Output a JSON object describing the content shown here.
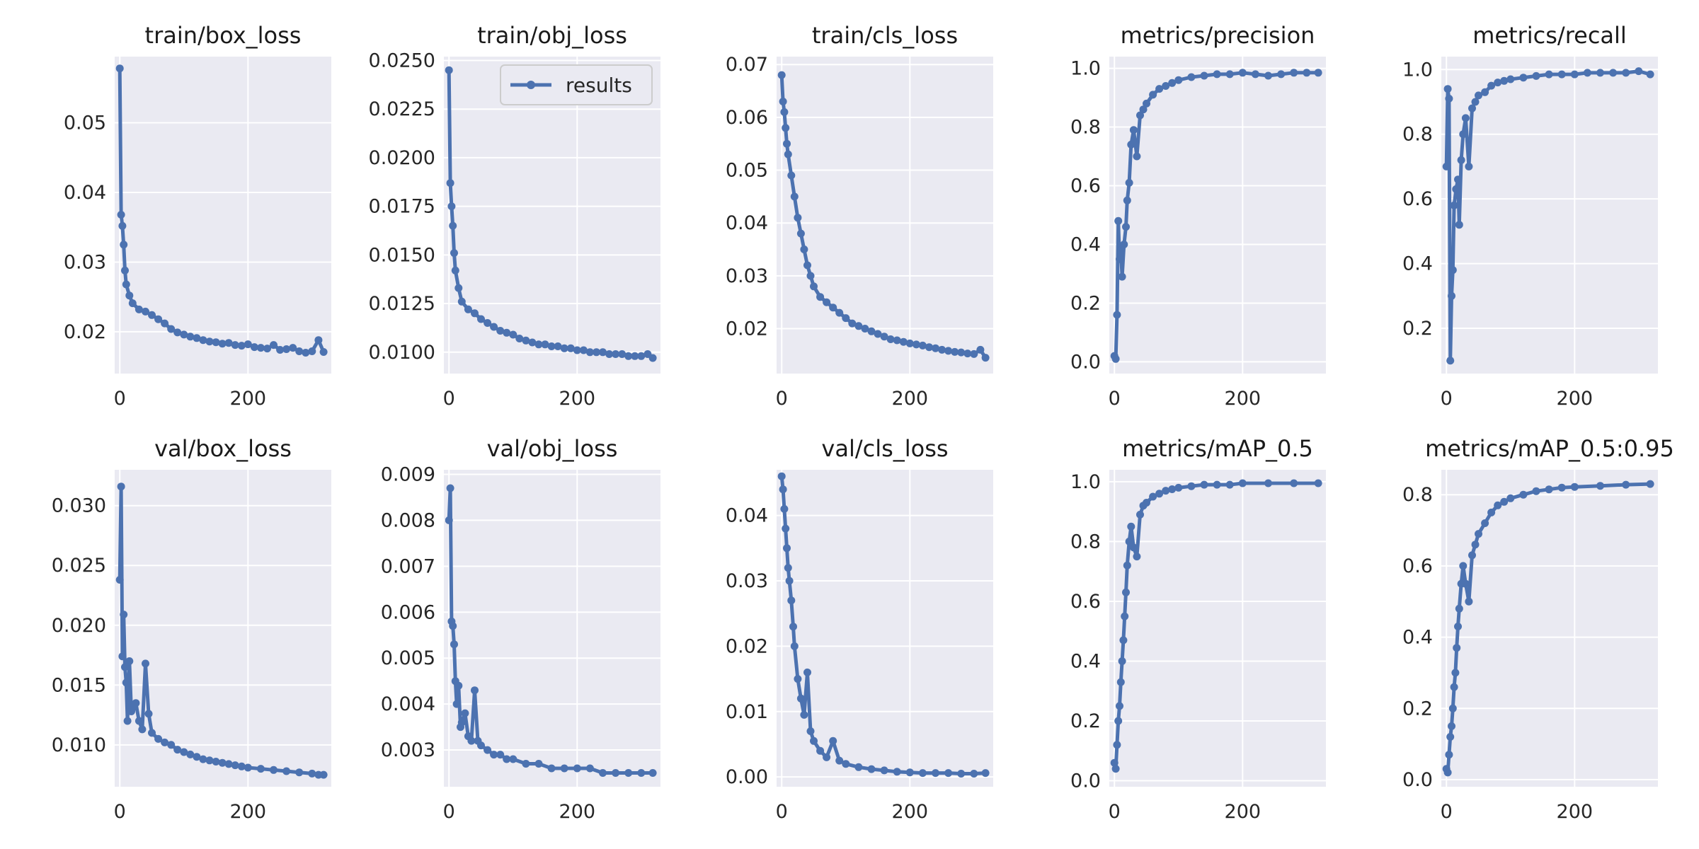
{
  "figure_style": {
    "series_color": "#4c72b0"
  },
  "legend": {
    "label": "results",
    "panel": 1,
    "placement": "top-right"
  },
  "chart_data": [
    {
      "type": "line",
      "title": "train/box_loss",
      "xlim": [
        -8,
        330
      ],
      "ylim": [
        0.014,
        0.0595
      ],
      "xticks": [
        0,
        200
      ],
      "yticks": [
        0.02,
        0.03,
        0.04,
        0.05
      ],
      "ytick_labels": [
        "0.02",
        "0.03",
        "0.04",
        "0.05"
      ],
      "series": [
        {
          "name": "results",
          "x": [
            0,
            2,
            4,
            6,
            8,
            10,
            15,
            20,
            30,
            40,
            50,
            60,
            70,
            80,
            90,
            100,
            110,
            120,
            130,
            140,
            150,
            160,
            170,
            180,
            190,
            200,
            210,
            220,
            230,
            240,
            250,
            260,
            270,
            280,
            290,
            300,
            310,
            318
          ],
          "y": [
            0.0578,
            0.0368,
            0.0352,
            0.0325,
            0.0288,
            0.0268,
            0.0252,
            0.0241,
            0.0232,
            0.0229,
            0.0224,
            0.0218,
            0.0212,
            0.0204,
            0.0199,
            0.0196,
            0.0193,
            0.0191,
            0.0188,
            0.0186,
            0.0185,
            0.0183,
            0.0184,
            0.0181,
            0.018,
            0.0182,
            0.0178,
            0.0177,
            0.0176,
            0.0181,
            0.0174,
            0.0175,
            0.0177,
            0.0172,
            0.017,
            0.0172,
            0.0188,
            0.0171
          ]
        }
      ]
    },
    {
      "type": "line",
      "title": "train/obj_loss",
      "xlim": [
        -8,
        330
      ],
      "ylim": [
        0.0089,
        0.0252
      ],
      "xticks": [
        0,
        200
      ],
      "yticks": [
        0.01,
        0.0125,
        0.015,
        0.0175,
        0.02,
        0.0225,
        0.025
      ],
      "ytick_labels": [
        "0.0100",
        "0.0125",
        "0.0150",
        "0.0175",
        "0.0200",
        "0.0225",
        "0.0250"
      ],
      "series": [
        {
          "name": "results",
          "x": [
            0,
            2,
            4,
            6,
            8,
            10,
            15,
            20,
            30,
            40,
            50,
            60,
            70,
            80,
            90,
            100,
            110,
            120,
            130,
            140,
            150,
            160,
            170,
            180,
            190,
            200,
            210,
            220,
            230,
            240,
            250,
            260,
            270,
            280,
            290,
            300,
            310,
            318
          ],
          "y": [
            0.0245,
            0.0187,
            0.0175,
            0.0165,
            0.0151,
            0.0142,
            0.0133,
            0.0126,
            0.0122,
            0.012,
            0.0117,
            0.0115,
            0.0113,
            0.0111,
            0.011,
            0.0109,
            0.0107,
            0.0106,
            0.0105,
            0.0104,
            0.0104,
            0.0103,
            0.0103,
            0.0102,
            0.0102,
            0.0101,
            0.0101,
            0.01,
            0.01,
            0.01,
            0.0099,
            0.0099,
            0.0099,
            0.0098,
            0.0098,
            0.0098,
            0.0099,
            0.0097
          ]
        }
      ]
    },
    {
      "type": "line",
      "title": "train/cls_loss",
      "xlim": [
        -8,
        330
      ],
      "ylim": [
        0.0115,
        0.0715
      ],
      "xticks": [
        0,
        200
      ],
      "yticks": [
        0.02,
        0.03,
        0.04,
        0.05,
        0.06,
        0.07
      ],
      "ytick_labels": [
        "0.02",
        "0.03",
        "0.04",
        "0.05",
        "0.06",
        "0.07"
      ],
      "series": [
        {
          "name": "results",
          "x": [
            0,
            2,
            4,
            6,
            8,
            10,
            15,
            20,
            25,
            30,
            35,
            40,
            45,
            50,
            60,
            70,
            80,
            90,
            100,
            110,
            120,
            130,
            140,
            150,
            160,
            170,
            180,
            190,
            200,
            210,
            220,
            230,
            240,
            250,
            260,
            270,
            280,
            290,
            300,
            310,
            318
          ],
          "y": [
            0.068,
            0.063,
            0.061,
            0.058,
            0.055,
            0.053,
            0.049,
            0.045,
            0.041,
            0.038,
            0.035,
            0.032,
            0.03,
            0.028,
            0.026,
            0.025,
            0.024,
            0.023,
            0.022,
            0.021,
            0.0205,
            0.02,
            0.0195,
            0.019,
            0.0185,
            0.018,
            0.0178,
            0.0175,
            0.0172,
            0.017,
            0.0168,
            0.0165,
            0.0163,
            0.016,
            0.0158,
            0.0156,
            0.0155,
            0.0153,
            0.0152,
            0.016,
            0.0145
          ]
        }
      ]
    },
    {
      "type": "line",
      "title": "metrics/precision",
      "xlim": [
        -8,
        330
      ],
      "ylim": [
        -0.04,
        1.04
      ],
      "xticks": [
        0,
        200
      ],
      "yticks": [
        0,
        0.2,
        0.4,
        0.6,
        0.8,
        1.0
      ],
      "ytick_labels": [
        "0.0",
        "0.2",
        "0.4",
        "0.6",
        "0.8",
        "1.0"
      ],
      "series": [
        {
          "name": "results",
          "x": [
            0,
            2,
            4,
            6,
            8,
            10,
            12,
            15,
            18,
            20,
            23,
            26,
            30,
            35,
            40,
            45,
            50,
            60,
            70,
            80,
            90,
            100,
            120,
            140,
            160,
            180,
            200,
            220,
            240,
            260,
            280,
            300,
            318
          ],
          "y": [
            0.02,
            0.01,
            0.16,
            0.48,
            0.35,
            0.38,
            0.29,
            0.4,
            0.46,
            0.55,
            0.61,
            0.74,
            0.79,
            0.7,
            0.84,
            0.86,
            0.88,
            0.91,
            0.93,
            0.94,
            0.95,
            0.96,
            0.97,
            0.975,
            0.98,
            0.98,
            0.985,
            0.98,
            0.975,
            0.98,
            0.985,
            0.985,
            0.985
          ]
        }
      ]
    },
    {
      "type": "line",
      "title": "metrics/recall",
      "xlim": [
        -8,
        330
      ],
      "ylim": [
        0.06,
        1.04
      ],
      "xticks": [
        0,
        200
      ],
      "yticks": [
        0.2,
        0.4,
        0.6,
        0.8,
        1.0
      ],
      "ytick_labels": [
        "0.2",
        "0.4",
        "0.6",
        "0.8",
        "1.0"
      ],
      "series": [
        {
          "name": "results",
          "x": [
            0,
            2,
            4,
            6,
            8,
            10,
            12,
            15,
            18,
            20,
            23,
            26,
            30,
            35,
            40,
            45,
            50,
            60,
            70,
            80,
            90,
            100,
            120,
            140,
            160,
            180,
            200,
            220,
            240,
            260,
            280,
            300,
            318
          ],
          "y": [
            0.7,
            0.94,
            0.91,
            0.1,
            0.3,
            0.38,
            0.58,
            0.63,
            0.66,
            0.52,
            0.72,
            0.8,
            0.85,
            0.7,
            0.88,
            0.9,
            0.92,
            0.93,
            0.95,
            0.96,
            0.965,
            0.97,
            0.975,
            0.98,
            0.985,
            0.985,
            0.985,
            0.99,
            0.99,
            0.99,
            0.99,
            0.995,
            0.985
          ]
        }
      ]
    },
    {
      "type": "line",
      "title": "val/box_loss",
      "xlim": [
        -8,
        330
      ],
      "ylim": [
        0.0065,
        0.033
      ],
      "xticks": [
        0,
        200
      ],
      "yticks": [
        0.01,
        0.015,
        0.02,
        0.025,
        0.03
      ],
      "ytick_labels": [
        "0.010",
        "0.015",
        "0.020",
        "0.025",
        "0.030"
      ],
      "series": [
        {
          "name": "results",
          "x": [
            0,
            2,
            4,
            6,
            8,
            10,
            12,
            15,
            18,
            20,
            25,
            30,
            35,
            40,
            45,
            50,
            60,
            70,
            80,
            90,
            100,
            110,
            120,
            130,
            140,
            150,
            160,
            170,
            180,
            190,
            200,
            220,
            240,
            260,
            280,
            300,
            310,
            318
          ],
          "y": [
            0.0238,
            0.0316,
            0.0174,
            0.0209,
            0.0165,
            0.0152,
            0.012,
            0.017,
            0.0128,
            0.0131,
            0.0135,
            0.012,
            0.0113,
            0.0168,
            0.0126,
            0.011,
            0.0105,
            0.0102,
            0.01,
            0.0096,
            0.0094,
            0.0092,
            0.009,
            0.0088,
            0.0087,
            0.0086,
            0.0085,
            0.0084,
            0.0083,
            0.0082,
            0.0081,
            0.008,
            0.0079,
            0.0078,
            0.0077,
            0.0076,
            0.0075,
            0.0075
          ]
        }
      ]
    },
    {
      "type": "line",
      "title": "val/obj_loss",
      "xlim": [
        -8,
        330
      ],
      "ylim": [
        0.0022,
        0.0091
      ],
      "xticks": [
        0,
        200
      ],
      "yticks": [
        0.003,
        0.004,
        0.005,
        0.006,
        0.007,
        0.008,
        0.009
      ],
      "ytick_labels": [
        "0.003",
        "0.004",
        "0.005",
        "0.006",
        "0.007",
        "0.008",
        "0.009"
      ],
      "series": [
        {
          "name": "results",
          "x": [
            0,
            2,
            4,
            6,
            8,
            10,
            12,
            15,
            18,
            20,
            25,
            30,
            35,
            40,
            45,
            50,
            60,
            70,
            80,
            90,
            100,
            120,
            140,
            160,
            180,
            200,
            220,
            240,
            260,
            280,
            300,
            318
          ],
          "y": [
            0.008,
            0.0087,
            0.0058,
            0.0057,
            0.0053,
            0.0045,
            0.004,
            0.0044,
            0.0035,
            0.0036,
            0.0038,
            0.0033,
            0.0032,
            0.0043,
            0.0032,
            0.0031,
            0.003,
            0.0029,
            0.0029,
            0.0028,
            0.0028,
            0.0027,
            0.0027,
            0.0026,
            0.0026,
            0.0026,
            0.0026,
            0.0025,
            0.0025,
            0.0025,
            0.0025,
            0.0025
          ]
        }
      ]
    },
    {
      "type": "line",
      "title": "val/cls_loss",
      "xlim": [
        -8,
        330
      ],
      "ylim": [
        -0.0015,
        0.047
      ],
      "xticks": [
        0,
        200
      ],
      "yticks": [
        0,
        0.01,
        0.02,
        0.03,
        0.04
      ],
      "ytick_labels": [
        "0.00",
        "0.01",
        "0.02",
        "0.03",
        "0.04"
      ],
      "series": [
        {
          "name": "results",
          "x": [
            0,
            2,
            4,
            6,
            8,
            10,
            12,
            15,
            18,
            20,
            25,
            30,
            35,
            40,
            45,
            50,
            60,
            70,
            80,
            90,
            100,
            120,
            140,
            160,
            180,
            200,
            220,
            240,
            260,
            280,
            300,
            318
          ],
          "y": [
            0.046,
            0.044,
            0.041,
            0.038,
            0.035,
            0.032,
            0.03,
            0.027,
            0.023,
            0.02,
            0.015,
            0.012,
            0.0095,
            0.016,
            0.007,
            0.0055,
            0.004,
            0.003,
            0.0055,
            0.0025,
            0.002,
            0.0015,
            0.0012,
            0.001,
            0.0008,
            0.0007,
            0.0006,
            0.0006,
            0.0006,
            0.0005,
            0.0005,
            0.0006
          ]
        }
      ]
    },
    {
      "type": "line",
      "title": "metrics/mAP_0.5",
      "xlim": [
        -8,
        330
      ],
      "ylim": [
        -0.02,
        1.04
      ],
      "xticks": [
        0,
        200
      ],
      "yticks": [
        0,
        0.2,
        0.4,
        0.6,
        0.8,
        1.0
      ],
      "ytick_labels": [
        "0.0",
        "0.2",
        "0.4",
        "0.6",
        "0.8",
        "1.0"
      ],
      "series": [
        {
          "name": "results",
          "x": [
            0,
            2,
            4,
            6,
            8,
            10,
            12,
            14,
            16,
            18,
            20,
            23,
            26,
            30,
            35,
            40,
            45,
            50,
            60,
            70,
            80,
            90,
            100,
            120,
            140,
            160,
            180,
            200,
            240,
            280,
            318
          ],
          "y": [
            0.06,
            0.04,
            0.12,
            0.2,
            0.25,
            0.33,
            0.4,
            0.47,
            0.55,
            0.63,
            0.72,
            0.8,
            0.85,
            0.78,
            0.75,
            0.89,
            0.92,
            0.93,
            0.95,
            0.96,
            0.97,
            0.975,
            0.98,
            0.985,
            0.99,
            0.99,
            0.99,
            0.995,
            0.995,
            0.995,
            0.995
          ]
        }
      ]
    },
    {
      "type": "line",
      "title": "metrics/mAP_0.5:0.95",
      "xlim": [
        -8,
        330
      ],
      "ylim": [
        -0.02,
        0.87
      ],
      "xticks": [
        0,
        200
      ],
      "yticks": [
        0,
        0.2,
        0.4,
        0.6,
        0.8
      ],
      "ytick_labels": [
        "0.0",
        "0.2",
        "0.4",
        "0.6",
        "0.8"
      ],
      "series": [
        {
          "name": "results",
          "x": [
            0,
            2,
            4,
            6,
            8,
            10,
            12,
            14,
            16,
            18,
            20,
            23,
            26,
            30,
            35,
            40,
            45,
            50,
            60,
            70,
            80,
            90,
            100,
            120,
            140,
            160,
            180,
            200,
            240,
            280,
            318
          ],
          "y": [
            0.03,
            0.02,
            0.07,
            0.12,
            0.15,
            0.2,
            0.26,
            0.3,
            0.37,
            0.43,
            0.48,
            0.55,
            0.6,
            0.55,
            0.5,
            0.63,
            0.66,
            0.69,
            0.72,
            0.75,
            0.77,
            0.78,
            0.79,
            0.8,
            0.81,
            0.815,
            0.82,
            0.822,
            0.825,
            0.828,
            0.83
          ]
        }
      ]
    }
  ]
}
